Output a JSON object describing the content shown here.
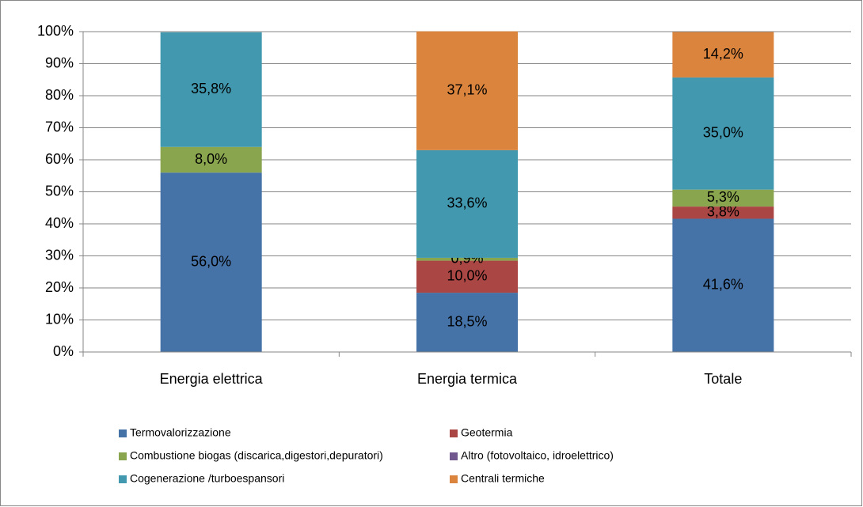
{
  "chart_data": {
    "type": "stacked_bar",
    "categories": [
      "Energia elettrica",
      "Energia termica",
      "Totale"
    ],
    "series": [
      {
        "name": "Termovalorizzazione",
        "color": "#4572a7",
        "values": [
          56.0,
          18.5,
          41.6
        ],
        "value_labels": [
          "56,0%",
          "18,5%",
          "41,6%"
        ]
      },
      {
        "name": "Geotermia",
        "color": "#aa4643",
        "values": [
          null,
          10.0,
          3.8
        ],
        "value_labels": [
          null,
          "10,0%",
          "3,8%"
        ]
      },
      {
        "name": "Combustione biogas (discarica,digestori,depuratori)",
        "color": "#89a54e",
        "values": [
          8.0,
          0.9,
          5.3
        ],
        "value_labels": [
          "8,0%",
          "0,9%",
          "5,3%"
        ]
      },
      {
        "name": "Altro (fotovoltaico, idroelettrico)",
        "color": "#71588f",
        "values": [
          null,
          null,
          null
        ],
        "value_labels": [
          null,
          null,
          null
        ]
      },
      {
        "name": "Cogenerazione /turboespansori",
        "color": "#4198af",
        "values": [
          35.8,
          33.6,
          35.0
        ],
        "value_labels": [
          "35,8%",
          "33,6%",
          "35,0%"
        ]
      },
      {
        "name": "Centrali termiche",
        "color": "#db843d",
        "values": [
          null,
          37.1,
          14.2
        ],
        "value_labels": [
          null,
          "37,1%",
          "14,2%"
        ]
      }
    ],
    "ylim": [
      0,
      100
    ],
    "yticks": [
      {
        "value": 0,
        "label": "0%"
      },
      {
        "value": 10,
        "label": "10%"
      },
      {
        "value": 20,
        "label": "20%"
      },
      {
        "value": 30,
        "label": "30%"
      },
      {
        "value": 40,
        "label": "40%"
      },
      {
        "value": 50,
        "label": "50%"
      },
      {
        "value": 60,
        "label": "60%"
      },
      {
        "value": 70,
        "label": "70%"
      },
      {
        "value": 80,
        "label": "80%"
      },
      {
        "value": 90,
        "label": "90%"
      },
      {
        "value": 100,
        "label": "100%"
      }
    ],
    "grid": true
  }
}
